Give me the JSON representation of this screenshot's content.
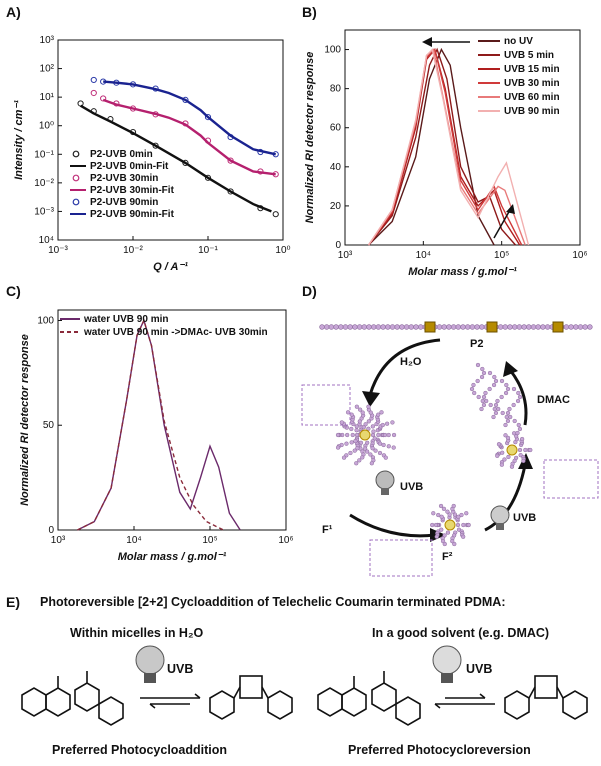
{
  "panel_labels": {
    "a": "A)",
    "b": "B)",
    "c": "C)",
    "d": "D)",
    "e": "E)"
  },
  "chart_data": [
    {
      "panel": "A",
      "type": "scatter",
      "xlabel": "Q / A⁻¹",
      "ylabel": "Intensity / cm⁻¹",
      "xscale": "log",
      "yscale": "log",
      "xlim": [
        0.001,
        1
      ],
      "ylim": [
        0.0001,
        1000
      ],
      "x_ticks": [
        "10⁻³",
        "10⁻²",
        "10⁻¹",
        "10⁰"
      ],
      "y_ticks": [
        "10⁴",
        "10⁻³",
        "10⁻²",
        "10⁻¹",
        "10⁰",
        "10¹",
        "10²",
        "10³"
      ],
      "legend_position": "bottom-left",
      "series": [
        {
          "name": "P2-UVB 0min",
          "kind": "markers",
          "color": "#222222",
          "x": [
            0.002,
            0.003,
            0.005,
            0.01,
            0.02,
            0.05,
            0.1,
            0.2,
            0.5,
            0.8
          ],
          "y": [
            6,
            3.2,
            1.7,
            0.6,
            0.2,
            0.05,
            0.015,
            0.005,
            0.0013,
            0.0008
          ]
        },
        {
          "name": "P2-UVB 0min-Fit",
          "kind": "line",
          "color": "#111111",
          "x": [
            0.002,
            0.003,
            0.005,
            0.01,
            0.02,
            0.05,
            0.1,
            0.2,
            0.4,
            0.7
          ],
          "y": [
            5,
            2.7,
            1.4,
            0.55,
            0.2,
            0.05,
            0.015,
            0.005,
            0.0018,
            0.001
          ]
        },
        {
          "name": "P2-UVB 30min",
          "kind": "markers",
          "color": "#c0307a",
          "x": [
            0.003,
            0.004,
            0.006,
            0.01,
            0.02,
            0.05,
            0.1,
            0.2,
            0.5,
            0.8
          ],
          "y": [
            14,
            9,
            6,
            4,
            2.5,
            1.2,
            0.3,
            0.06,
            0.025,
            0.02
          ]
        },
        {
          "name": "P2-UVB 30min-Fit",
          "kind": "line",
          "color": "#b5206e",
          "x": [
            0.004,
            0.006,
            0.01,
            0.02,
            0.03,
            0.05,
            0.08,
            0.1,
            0.2,
            0.4,
            0.8
          ],
          "y": [
            8,
            5.5,
            4,
            2.6,
            1.9,
            1.1,
            0.45,
            0.25,
            0.06,
            0.025,
            0.02
          ]
        },
        {
          "name": "P2-UVB 90min",
          "kind": "markers",
          "color": "#2b3aa8",
          "x": [
            0.003,
            0.004,
            0.006,
            0.01,
            0.02,
            0.05,
            0.1,
            0.2,
            0.5,
            0.8
          ],
          "y": [
            40,
            35,
            32,
            28,
            20,
            8,
            2,
            0.4,
            0.12,
            0.1
          ]
        },
        {
          "name": "P2-UVB 90min-Fit",
          "kind": "line",
          "color": "#1a2390",
          "x": [
            0.004,
            0.006,
            0.01,
            0.02,
            0.03,
            0.05,
            0.08,
            0.1,
            0.2,
            0.4,
            0.8
          ],
          "y": [
            35,
            32,
            28,
            19,
            14,
            8,
            3.5,
            2,
            0.45,
            0.15,
            0.1
          ]
        }
      ]
    },
    {
      "panel": "B",
      "type": "line",
      "xlabel": "Molar mass / g.mol⁻¹",
      "ylabel": "Normalized RI detector response",
      "xscale": "log",
      "xlim": [
        1000,
        1000000
      ],
      "ylim": [
        0,
        110
      ],
      "x_ticks": [
        "10³",
        "10⁴",
        "10⁵",
        "10⁶"
      ],
      "y_ticks": [
        "0",
        "20",
        "40",
        "60",
        "80",
        "100"
      ],
      "legend_position": "top-right",
      "series": [
        {
          "name": "no UV",
          "color": "#5a1a1a",
          "x": [
            2000,
            4000,
            8000,
            12000,
            17000,
            22000,
            30000,
            50000,
            80000
          ],
          "y": [
            0,
            12,
            45,
            85,
            100,
            92,
            60,
            15,
            0
          ]
        },
        {
          "name": "UVB 5 min",
          "color": "#8e1a1a",
          "x": [
            2000,
            4000,
            8000,
            12000,
            15000,
            20000,
            30000,
            50000,
            70000,
            100000,
            150000
          ],
          "y": [
            0,
            15,
            55,
            92,
            100,
            85,
            40,
            22,
            25,
            8,
            0
          ]
        },
        {
          "name": "UVB 15 min",
          "color": "#b01e1e",
          "x": [
            2000,
            4000,
            8000,
            11000,
            14000,
            19000,
            30000,
            50000,
            80000,
            110000,
            170000
          ],
          "y": [
            0,
            16,
            60,
            95,
            100,
            80,
            35,
            20,
            28,
            12,
            0
          ]
        },
        {
          "name": "UVB 30 min",
          "color": "#d03a3a",
          "x": [
            2000,
            4000,
            8000,
            11000,
            14000,
            19000,
            30000,
            50000,
            80000,
            100000,
            180000
          ],
          "y": [
            0,
            17,
            62,
            96,
            100,
            78,
            33,
            18,
            30,
            20,
            0
          ]
        },
        {
          "name": "UVB 60 min",
          "color": "#e87a7a",
          "x": [
            2000,
            4000,
            8000,
            11000,
            13500,
            18000,
            30000,
            50000,
            90000,
            110000,
            200000
          ],
          "y": [
            0,
            18,
            63,
            97,
            100,
            75,
            30,
            16,
            30,
            28,
            0
          ]
        },
        {
          "name": "UVB 90 min",
          "color": "#f2b0b0",
          "x": [
            2000,
            4000,
            8000,
            11000,
            13000,
            18000,
            30000,
            50000,
            90000,
            115000,
            220000
          ],
          "y": [
            0,
            18,
            64,
            97,
            100,
            74,
            28,
            14,
            35,
            42,
            0
          ]
        }
      ]
    },
    {
      "panel": "C",
      "type": "line",
      "xlabel": "Molar mass / g.mol⁻¹",
      "ylabel": "Normalized RI detector response",
      "xscale": "log",
      "xlim": [
        1000,
        1000000
      ],
      "ylim": [
        0,
        105
      ],
      "x_ticks": [
        "10³",
        "10⁴",
        "10⁵",
        "10⁶"
      ],
      "y_ticks": [
        "0",
        "50",
        "100"
      ],
      "legend_position": "top-right",
      "series": [
        {
          "name": "water UVB 90 min",
          "color": "#6b2a6b",
          "dash": "",
          "x": [
            1800,
            3000,
            5000,
            8000,
            11000,
            13500,
            17000,
            25000,
            40000,
            55000,
            75000,
            100000,
            130000,
            180000,
            250000
          ],
          "y": [
            0,
            4,
            20,
            62,
            93,
            100,
            88,
            50,
            18,
            10,
            25,
            40,
            30,
            8,
            0
          ]
        },
        {
          "name": "water UVB 90 min ->DMAc- UVB 30min",
          "color": "#8a2a3a",
          "dash": "4,3",
          "x": [
            1800,
            3000,
            5000,
            8000,
            11000,
            13500,
            17000,
            25000,
            40000,
            60000,
            90000,
            150000
          ],
          "y": [
            0,
            4,
            20,
            62,
            93,
            100,
            88,
            52,
            25,
            12,
            4,
            0
          ]
        }
      ]
    }
  ],
  "annotations": {
    "panel_d": {
      "p2": "P2",
      "h2o": "H₂O",
      "uvb1": "UVB",
      "uvb2": "UVB",
      "dmac": "DMAC",
      "f1": "F¹",
      "f2": "F²"
    },
    "panel_e": {
      "title": "Photoreversible [2+2] Cycloaddition of Telechelic Coumarin terminated PDMA:",
      "left_head": "Within micelles in H₂O",
      "right_head": "In a good solvent (e.g. DMAC)",
      "left_uvb": "UVB",
      "right_uvb": "UVB",
      "left_foot": "Preferred Photocycloaddition",
      "right_foot": "Preferred Photocycloreversion"
    }
  }
}
